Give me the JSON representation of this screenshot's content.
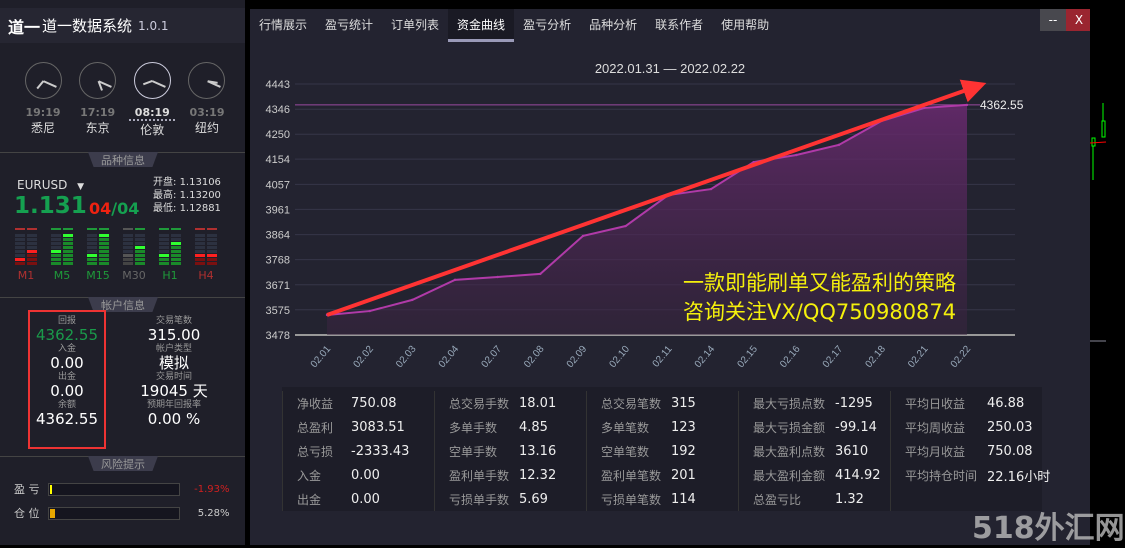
{
  "app": {
    "logo": "道一",
    "title": "道一数据系统",
    "version": "1.0.1"
  },
  "clocks": [
    {
      "time": "19:19",
      "city": "悉尼",
      "h": 7,
      "m": 19,
      "active": false
    },
    {
      "time": "17:19",
      "city": "东京",
      "h": 5,
      "m": 19,
      "active": false
    },
    {
      "time": "08:19",
      "city": "伦敦",
      "h": 8,
      "m": 19,
      "active": true
    },
    {
      "time": "03:19",
      "city": "纽约",
      "h": 3,
      "m": 19,
      "active": false
    }
  ],
  "symbol_section": {
    "title": "品种信息",
    "symbol": "EURUSD",
    "price": "1.131",
    "ratio_red": "04",
    "ratio_sep": "/",
    "ratio_green": "04",
    "open_label": "开盘:",
    "open": "1.13106",
    "high_label": "最高:",
    "high": "1.13200",
    "low_label": "最低:",
    "low": "1.12881",
    "timeframes": [
      {
        "name": "M1",
        "color": "#b03030",
        "levels": [
          2,
          4
        ],
        "tops": [
          "#b03030",
          "#b03030"
        ]
      },
      {
        "name": "M5",
        "color": "#1f9a3a",
        "levels": [
          4,
          8
        ],
        "tops": [
          "#1f9a3a",
          "#1f9a3a"
        ]
      },
      {
        "name": "M15",
        "color": "#1f9a3a",
        "levels": [
          3,
          8
        ],
        "tops": [
          "#1f9a3a",
          "#1f9a3a"
        ]
      },
      {
        "name": "M30",
        "color": "#666666",
        "levels": [
          3,
          5
        ],
        "tops": [
          "#555555",
          "#1f9a3a"
        ]
      },
      {
        "name": "H1",
        "color": "#1f9a3a",
        "levels": [
          3,
          6
        ],
        "tops": [
          "#1f9a3a",
          "#1f9a3a"
        ]
      },
      {
        "name": "H4",
        "color": "#b03030",
        "levels": [
          3,
          3
        ],
        "tops": [
          "#b03030",
          "#b03030"
        ]
      }
    ]
  },
  "account": {
    "title": "帐户信息",
    "left": [
      {
        "label": "回报",
        "value": "4362.55"
      },
      {
        "label": "入金",
        "value": "0.00"
      },
      {
        "label": "出金",
        "value": "0.00"
      },
      {
        "label": "余额",
        "value": "4362.55"
      }
    ],
    "right": [
      {
        "label": "交易笔数",
        "value": "315.00"
      },
      {
        "label": "帐户类型",
        "value": "模拟"
      },
      {
        "label": "交易时间",
        "value": "19045 天"
      },
      {
        "label": "预期年回报率",
        "value": "0.00 %"
      }
    ]
  },
  "risk": {
    "title": "风险提示",
    "items": [
      {
        "label": "盈 亏",
        "value": "-1.93%",
        "fill": 1.93,
        "color": "#ffff00",
        "vcolor": "#d02020"
      },
      {
        "label": "仓 位",
        "value": "5.28%",
        "fill": 5.28,
        "color": "#e8a800",
        "vcolor": "#cccccc"
      }
    ]
  },
  "nav": [
    "行情展示",
    "盈亏统计",
    "订单列表",
    "资金曲线",
    "盈亏分析",
    "品种分析",
    "联系作者",
    "使用帮助"
  ],
  "nav_active": 3,
  "window": {
    "minimize": "--",
    "close": "X"
  },
  "chart_data": {
    "type": "area",
    "title": "2022.01.31 — 2022.02.22",
    "x": [
      "02.01",
      "02.02",
      "02.03",
      "02.04",
      "02.07",
      "02.08",
      "02.09",
      "02.10",
      "02.11",
      "02.14",
      "02.15",
      "02.16",
      "02.17",
      "02.18",
      "02.21",
      "02.22"
    ],
    "values": [
      3555,
      3570,
      3613,
      3690,
      3701,
      3713,
      3859,
      3897,
      4016,
      4039,
      4143,
      4170,
      4209,
      4301,
      4351,
      4362.55
    ],
    "yticks": [
      "4443",
      "4346",
      "4250",
      "4154",
      "4057",
      "3961",
      "3864",
      "3768",
      "3671",
      "3575",
      "3478"
    ],
    "ylim": [
      3478,
      4443
    ],
    "last_label": "4362.55",
    "ref_line": 4362.55,
    "line_color": "#b03aa8"
  },
  "promo": [
    "一款即能刷单又能盈利的策略",
    "咨询关注VX/QQ750980874"
  ],
  "stats": [
    [
      [
        "净收益",
        "750.08"
      ],
      [
        "总盈利",
        "3083.51"
      ],
      [
        "总亏损",
        "-2333.43"
      ],
      [
        "入金",
        "0.00"
      ],
      [
        "出金",
        "0.00"
      ]
    ],
    [
      [
        "总交易手数",
        "18.01"
      ],
      [
        "多单手数",
        "4.85"
      ],
      [
        "空单手数",
        "13.16"
      ],
      [
        "盈利单手数",
        "12.32"
      ],
      [
        "亏损单手数",
        "5.69"
      ]
    ],
    [
      [
        "总交易笔数",
        "315"
      ],
      [
        "多单笔数",
        "123"
      ],
      [
        "空单笔数",
        "192"
      ],
      [
        "盈利单笔数",
        "201"
      ],
      [
        "亏损单笔数",
        "114"
      ]
    ],
    [
      [
        "最大亏损点数",
        "-1295"
      ],
      [
        "最大亏损金额",
        "-99.14"
      ],
      [
        "最大盈利点数",
        "3610"
      ],
      [
        "最大盈利金额",
        "414.92"
      ],
      [
        "总盈亏比",
        "1.32"
      ]
    ],
    [
      [
        "平均日收益",
        "46.88"
      ],
      [
        "平均周收益",
        "250.03"
      ],
      [
        "平均月收益",
        "750.08"
      ],
      [
        "平均持仓时间",
        "22.16小时"
      ]
    ]
  ],
  "watermark": "518外汇网"
}
